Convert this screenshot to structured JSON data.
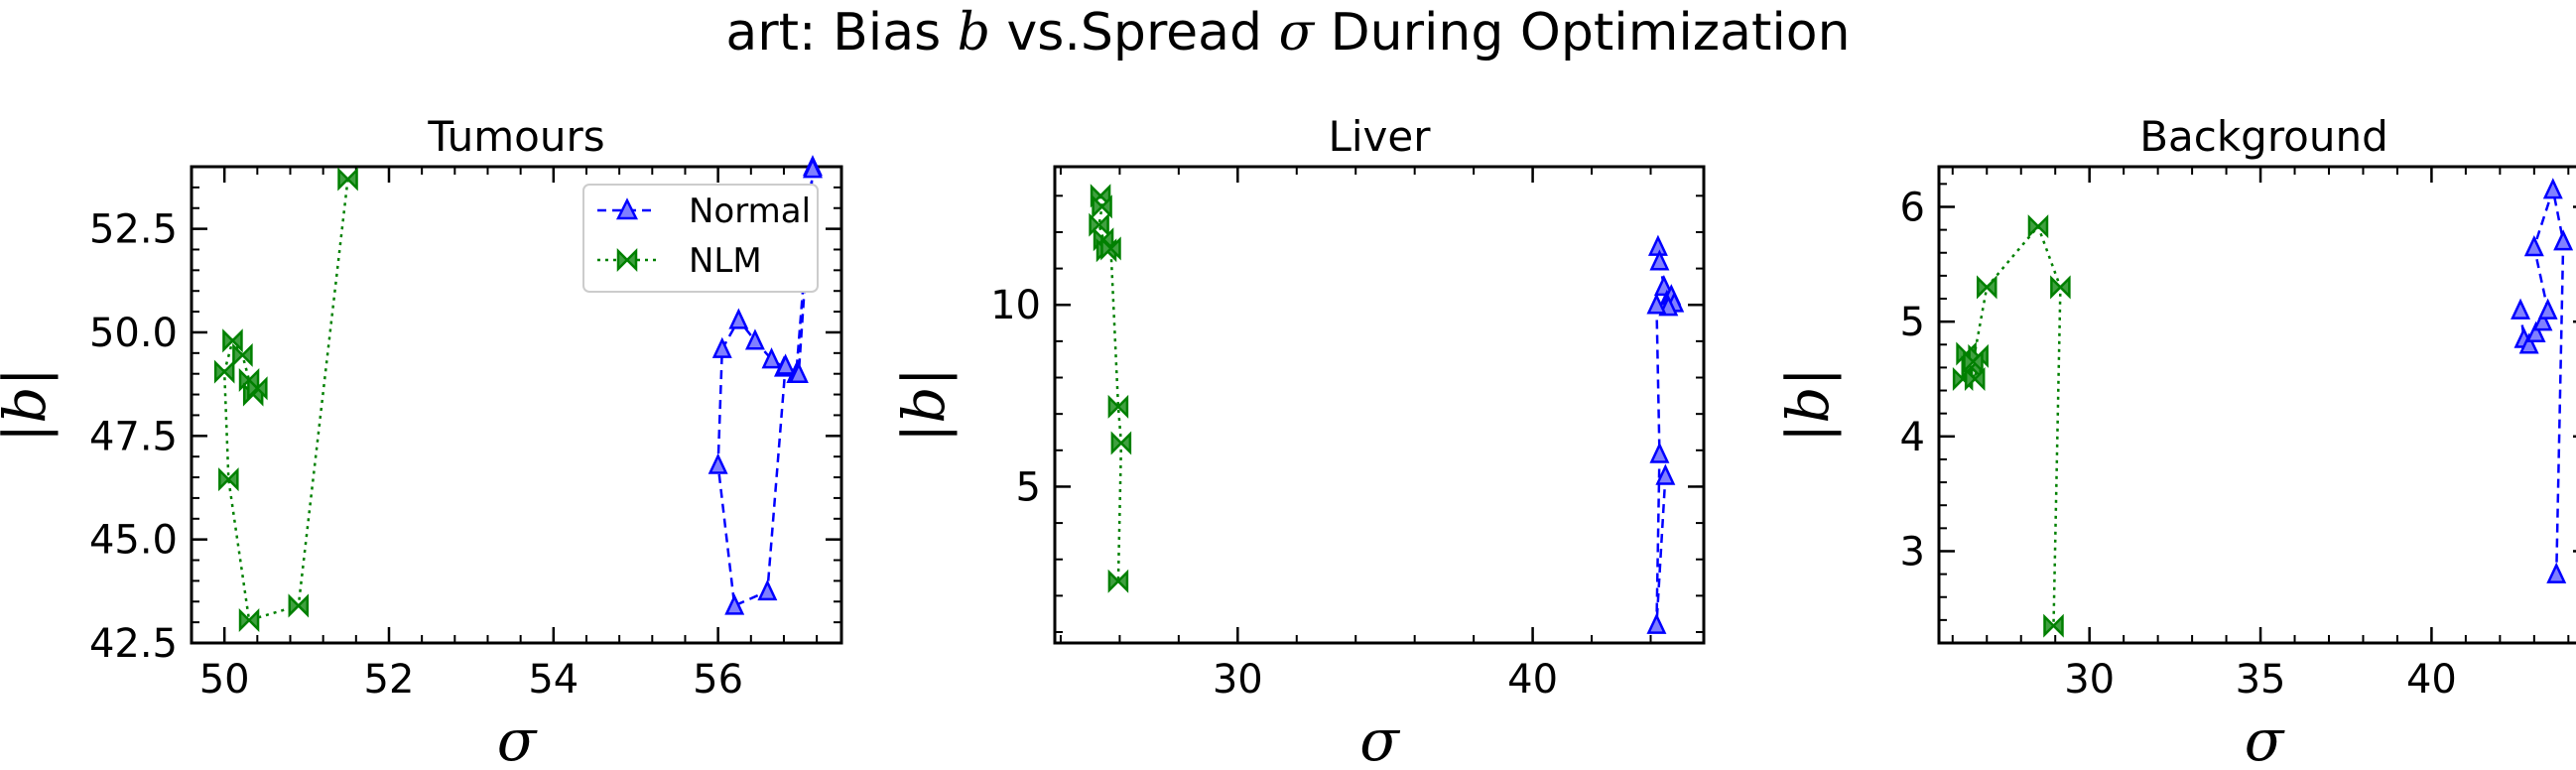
{
  "figure": {
    "title_prefix": "art: Bias ",
    "title_b": "b",
    "title_mid": " vs.Spread ",
    "title_sigma": "σ",
    "title_suffix": " During Optimization"
  },
  "legend": {
    "normal_label": "Normal",
    "nlm_label": "NLM",
    "placement": "upper right of first panel"
  },
  "colors": {
    "normal": "#0000ff",
    "nlm": "#008000",
    "normal_fill": "#8080ff",
    "nlm_fill": "#40a040"
  },
  "chart_data": [
    {
      "type": "line",
      "title": "Tumours",
      "xlabel": "σ",
      "ylabel": "|b|",
      "xlim": [
        49.6,
        57.5
      ],
      "ylim": [
        42.5,
        54.0
      ],
      "xticks": [
        50,
        52,
        54,
        56
      ],
      "xtick_labels": [
        "50",
        "52",
        "54",
        "56"
      ],
      "yticks": [
        42.5,
        45.0,
        47.5,
        50.0,
        52.5
      ],
      "ytick_labels": [
        "42.5",
        "45.0",
        "47.5",
        "50.0",
        "52.5"
      ],
      "grid": false,
      "series": [
        {
          "name": "Normal",
          "style": "dashed",
          "marker": "triangle",
          "points": [
            [
              57.15,
              54.0
            ],
            [
              56.95,
              49.0
            ],
            [
              56.8,
              49.15
            ],
            [
              56.65,
              49.35
            ],
            [
              56.45,
              49.8
            ],
            [
              56.25,
              50.3
            ],
            [
              56.05,
              49.6
            ],
            [
              56.0,
              46.8
            ],
            [
              56.2,
              43.4
            ],
            [
              56.6,
              43.75
            ],
            [
              56.82,
              49.2
            ],
            [
              56.98,
              49.0
            ],
            [
              57.15,
              53.95
            ]
          ]
        },
        {
          "name": "NLM",
          "style": "dotted",
          "marker": "bowtie",
          "points": [
            [
              51.5,
              53.7
            ],
            [
              50.9,
              43.4
            ],
            [
              50.3,
              43.05
            ],
            [
              50.05,
              46.45
            ],
            [
              50.0,
              49.05
            ],
            [
              50.1,
              49.8
            ],
            [
              50.22,
              49.45
            ],
            [
              50.3,
              48.85
            ],
            [
              50.35,
              48.5
            ],
            [
              50.4,
              48.65
            ]
          ]
        }
      ]
    },
    {
      "type": "line",
      "title": "Liver",
      "xlabel": "σ",
      "ylabel": "|b|",
      "xlim": [
        23.8,
        45.8
      ],
      "ylim": [
        0.7,
        13.8
      ],
      "xticks": [
        30,
        40
      ],
      "xtick_labels": [
        "30",
        "40"
      ],
      "yticks": [
        5,
        10
      ],
      "ytick_labels": [
        "5",
        "10"
      ],
      "grid": false,
      "series": [
        {
          "name": "Normal",
          "style": "dashed",
          "marker": "triangle",
          "points": [
            [
              44.25,
              11.6
            ],
            [
              44.3,
              11.2
            ],
            [
              44.45,
              10.5
            ],
            [
              44.55,
              10.1
            ],
            [
              44.7,
              10.25
            ],
            [
              44.8,
              10.05
            ],
            [
              44.6,
              9.95
            ],
            [
              44.2,
              10.0
            ],
            [
              44.3,
              5.9
            ],
            [
              44.2,
              1.2
            ],
            [
              44.5,
              5.3
            ]
          ]
        },
        {
          "name": "NLM",
          "style": "dotted",
          "marker": "bowtie",
          "points": [
            [
              25.35,
              13.0
            ],
            [
              25.4,
              12.7
            ],
            [
              25.3,
              12.2
            ],
            [
              25.45,
              11.8
            ],
            [
              25.55,
              11.5
            ],
            [
              25.7,
              11.55
            ],
            [
              25.95,
              7.2
            ],
            [
              26.05,
              6.2
            ],
            [
              25.95,
              2.4
            ]
          ]
        }
      ]
    },
    {
      "type": "line",
      "title": "Background",
      "xlabel": "σ",
      "ylabel": "|b|",
      "xlim": [
        25.6,
        44.6
      ],
      "ylim": [
        2.2,
        6.35
      ],
      "xticks": [
        30,
        35,
        40
      ],
      "xtick_labels": [
        "30",
        "35",
        "40"
      ],
      "yticks": [
        3,
        4,
        5,
        6
      ],
      "ytick_labels": [
        "3",
        "4",
        "5",
        "6"
      ],
      "grid": false,
      "series": [
        {
          "name": "Normal",
          "style": "dashed",
          "marker": "triangle",
          "points": [
            [
              42.6,
              5.1
            ],
            [
              42.7,
              4.85
            ],
            [
              42.85,
              4.8
            ],
            [
              43.05,
              4.9
            ],
            [
              43.25,
              5.0
            ],
            [
              43.4,
              5.1
            ],
            [
              43.0,
              5.65
            ],
            [
              43.55,
              6.15
            ],
            [
              43.85,
              5.7
            ],
            [
              43.65,
              2.8
            ]
          ]
        },
        {
          "name": "NLM",
          "style": "dotted",
          "marker": "bowtie",
          "points": [
            [
              26.3,
              4.5
            ],
            [
              26.4,
              4.72
            ],
            [
              26.55,
              4.6
            ],
            [
              26.65,
              4.5
            ],
            [
              26.75,
              4.7
            ],
            [
              26.6,
              4.65
            ],
            [
              27.0,
              5.3
            ],
            [
              28.5,
              5.83
            ],
            [
              29.15,
              5.3
            ],
            [
              28.95,
              2.35
            ]
          ]
        }
      ]
    }
  ]
}
